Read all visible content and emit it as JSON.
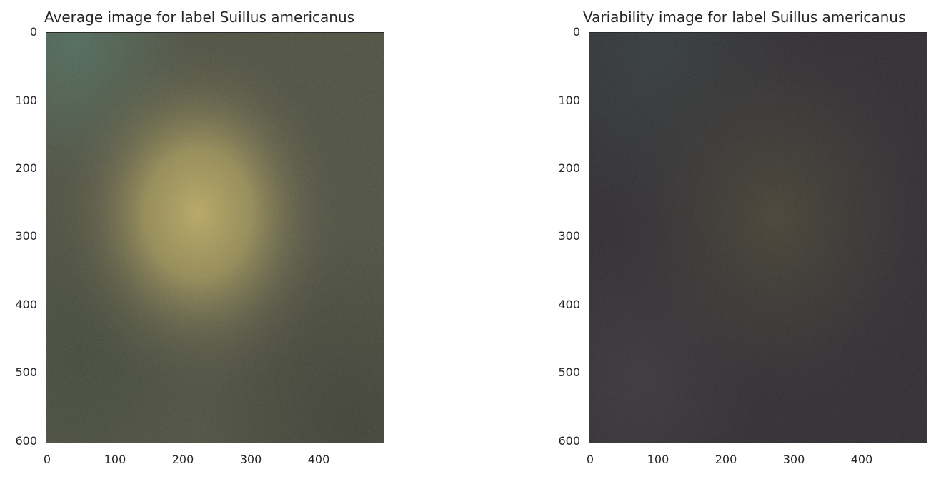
{
  "panels": [
    {
      "id": "average",
      "title": "Average image for label Suillus americanus",
      "image_kind": "average",
      "x_ticks": [
        "0",
        "100",
        "200",
        "300",
        "400"
      ],
      "y_ticks": [
        "0",
        "100",
        "200",
        "300",
        "400",
        "500",
        "600"
      ]
    },
    {
      "id": "variability",
      "title": "Variability image for label Suillus americanus",
      "image_kind": "variability",
      "x_ticks": [
        "0",
        "100",
        "200",
        "300",
        "400"
      ],
      "y_ticks": [
        "0",
        "100",
        "200",
        "300",
        "400",
        "500",
        "600"
      ]
    }
  ],
  "colors": {
    "average_background": "#4a4d3d",
    "average_center": "#b5a45e",
    "average_top_left": "#4f6a58",
    "variability_background": "#2f2c30",
    "variability_center": "#4a4535"
  },
  "icons": {
    "image": "photo-icon"
  }
}
